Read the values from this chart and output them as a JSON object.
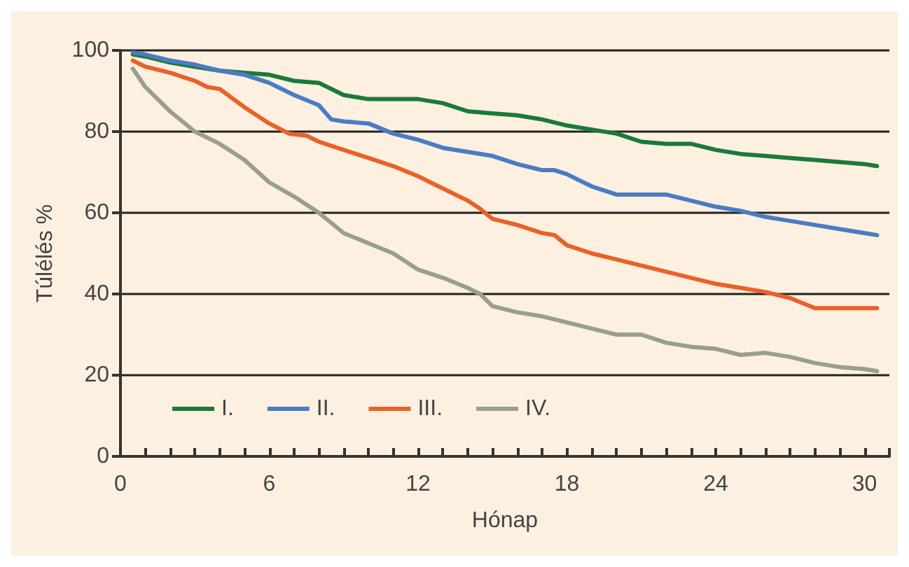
{
  "chart_data": {
    "type": "line",
    "xlabel": "Hónap",
    "ylabel": "Túlélés %",
    "xlim": [
      0,
      31
    ],
    "xticks": [
      0,
      {
        "value": 1,
        "label": null
      },
      {
        "value": 2,
        "label": null
      },
      {
        "value": 3,
        "label": null
      },
      {
        "value": 4,
        "label": null
      },
      {
        "value": 5,
        "label": null
      },
      6,
      {
        "value": 7,
        "label": null
      },
      {
        "value": 8,
        "label": null
      },
      {
        "value": 9,
        "label": null
      },
      {
        "value": 10,
        "label": null
      },
      {
        "value": 11,
        "label": null
      },
      12,
      {
        "value": 13,
        "label": null
      },
      {
        "value": 14,
        "label": null
      },
      {
        "value": 15,
        "label": null
      },
      {
        "value": 16,
        "label": null
      },
      {
        "value": 17,
        "label": null
      },
      18,
      {
        "value": 19,
        "label": null
      },
      {
        "value": 20,
        "label": null
      },
      {
        "value": 21,
        "label": null
      },
      {
        "value": 22,
        "label": null
      },
      {
        "value": 23,
        "label": null
      },
      24,
      {
        "value": 25,
        "label": null
      },
      {
        "value": 26,
        "label": null
      },
      {
        "value": 27,
        "label": null
      },
      {
        "value": 28,
        "label": null
      },
      {
        "value": 29,
        "label": null
      },
      30,
      {
        "value": 31,
        "label": null
      }
    ],
    "ylim": [
      0,
      100
    ],
    "yticks": [
      0,
      20,
      40,
      60,
      80,
      100
    ],
    "grid": "y",
    "legend": "bottom left",
    "marker": "none",
    "line_style": "solid",
    "series": [
      {
        "name": "I.",
        "color": "#1a7a3a",
        "x": [
          0.5,
          1,
          2,
          3,
          4,
          5,
          6,
          7,
          8,
          9,
          10,
          11,
          12,
          13,
          14,
          15,
          16,
          17,
          18,
          19,
          20,
          21,
          22,
          23,
          24,
          25,
          26,
          27,
          28,
          29,
          30,
          30.5
        ],
        "values": [
          99,
          98.5,
          97,
          96,
          95,
          94.5,
          94,
          92.5,
          92,
          89,
          88,
          88,
          88,
          87,
          85,
          84.5,
          84,
          83,
          81.5,
          80.5,
          79.5,
          77.5,
          77,
          77,
          75.5,
          74.5,
          74,
          73.5,
          73,
          72.5,
          72,
          71.5
        ]
      },
      {
        "name": "II.",
        "color": "#4a7cc4",
        "x": [
          0.5,
          1,
          2,
          3,
          4,
          5,
          6,
          7,
          8,
          8.5,
          9,
          10,
          11,
          12,
          13,
          14,
          15,
          16,
          17,
          17.5,
          18,
          19,
          20,
          21,
          22,
          23,
          24,
          25,
          26,
          27,
          28,
          29,
          30,
          30.5
        ],
        "values": [
          99.5,
          99,
          97.5,
          96.5,
          95,
          94,
          92,
          89,
          86.5,
          83,
          82.5,
          82,
          79.5,
          78,
          76,
          75,
          74,
          72,
          70.5,
          70.5,
          69.5,
          66.5,
          64.5,
          64.5,
          64.5,
          63,
          61.5,
          60.5,
          59,
          58,
          57,
          56,
          55,
          54.5
        ]
      },
      {
        "name": "III.",
        "color": "#e8622a",
        "x": [
          0.5,
          1,
          2,
          3,
          3.5,
          4,
          5,
          6,
          6.8,
          7.5,
          8,
          9,
          10,
          11,
          12,
          13,
          14,
          14.5,
          15,
          16,
          17,
          17.5,
          18,
          19,
          20,
          21,
          22,
          23,
          24,
          25,
          26,
          27,
          28,
          29,
          30.5
        ],
        "values": [
          97.5,
          96,
          94.5,
          92.5,
          91,
          90.5,
          86,
          82,
          79.5,
          79,
          77.5,
          75.5,
          73.5,
          71.5,
          69,
          66,
          63,
          61,
          58.5,
          57,
          55,
          54.5,
          52,
          50,
          48.5,
          47,
          45.5,
          44,
          42.5,
          41.5,
          40.5,
          39,
          36.5,
          36.5,
          36.5
        ]
      },
      {
        "name": "IV.",
        "color": "#98a08c",
        "x": [
          0.5,
          1,
          2,
          2.5,
          3,
          4,
          5,
          6,
          7,
          8,
          9,
          10,
          11,
          12,
          13,
          14,
          14.5,
          15,
          16,
          17,
          18,
          19,
          20,
          21,
          22,
          23,
          24,
          25,
          26,
          27,
          28,
          29,
          30,
          30.5
        ],
        "values": [
          95.5,
          91,
          85,
          82.5,
          80,
          77,
          73,
          67.5,
          64,
          60,
          55,
          52.5,
          50,
          46,
          44,
          41.5,
          40,
          37,
          35.5,
          34.5,
          33,
          31.5,
          30,
          30,
          28,
          27,
          26.5,
          25,
          25.5,
          24.5,
          23,
          22,
          21.5,
          21
        ]
      }
    ]
  }
}
